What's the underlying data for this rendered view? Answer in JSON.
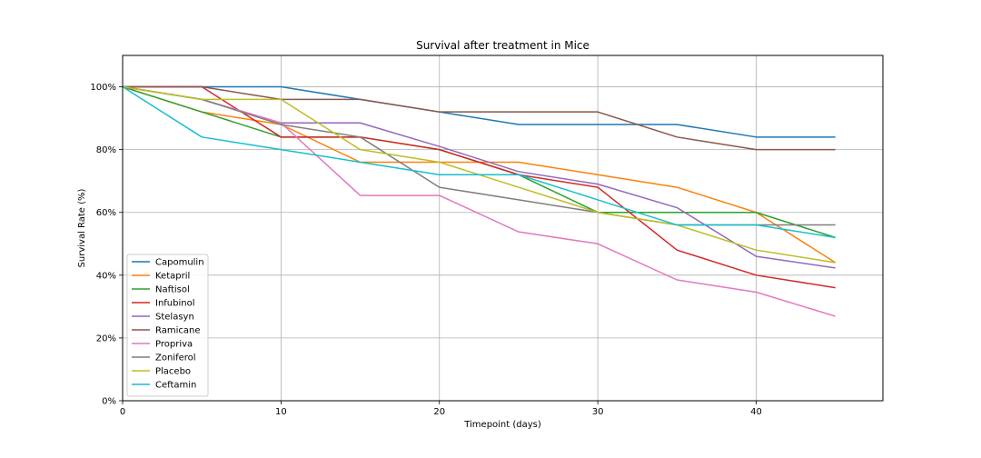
{
  "chart_data": {
    "type": "line",
    "title": "Survival after treatment in Mice",
    "xlabel": "Timepoint (days)",
    "ylabel": "Survival Rate (%)",
    "xlim": [
      0,
      48
    ],
    "ylim": [
      0,
      110
    ],
    "x_ticks": [
      0,
      10,
      20,
      30,
      40
    ],
    "y_ticks": [
      0,
      20,
      40,
      60,
      80,
      100
    ],
    "y_tick_labels": [
      "0%",
      "20%",
      "40%",
      "60%",
      "80%",
      "100%"
    ],
    "grid": true,
    "legend_position": "lower-left",
    "x": [
      0,
      5,
      10,
      15,
      20,
      25,
      30,
      35,
      40,
      45
    ],
    "series": [
      {
        "name": "Capomulin",
        "color": "#1f77b4",
        "values": [
          100,
          100,
          100,
          96,
          92,
          88,
          88,
          88,
          84,
          84
        ]
      },
      {
        "name": "Ketapril",
        "color": "#ff7f0e",
        "values": [
          100,
          92,
          88,
          76,
          76,
          76,
          72,
          68,
          60,
          44
        ]
      },
      {
        "name": "Naftisol",
        "color": "#2ca02c",
        "values": [
          100,
          92,
          84,
          84,
          80,
          72,
          60,
          60,
          60,
          52
        ]
      },
      {
        "name": "Infubinol",
        "color": "#d62728",
        "values": [
          100,
          100,
          84,
          84,
          80,
          72,
          68,
          48,
          40,
          36
        ]
      },
      {
        "name": "Stelasyn",
        "color": "#9467bd",
        "values": [
          100,
          96,
          88.5,
          88.5,
          81,
          73,
          69,
          61.5,
          46,
          42.3
        ]
      },
      {
        "name": "Ramicane",
        "color": "#8c564b",
        "values": [
          100,
          100,
          96,
          96,
          92,
          92,
          92,
          84,
          80,
          80
        ]
      },
      {
        "name": "Propriva",
        "color": "#e377c2",
        "values": [
          100,
          96,
          88.5,
          65.4,
          65.4,
          53.8,
          50,
          38.5,
          34.6,
          26.9
        ]
      },
      {
        "name": "Zoniferol",
        "color": "#7f7f7f",
        "values": [
          100,
          96,
          88,
          84,
          68,
          64,
          60,
          56,
          56,
          56
        ]
      },
      {
        "name": "Placebo",
        "color": "#bcbd22",
        "values": [
          100,
          96,
          96,
          80,
          76,
          68,
          60,
          56,
          48,
          44
        ]
      },
      {
        "name": "Ceftamin",
        "color": "#17becf",
        "values": [
          100,
          84,
          80,
          76,
          72,
          72,
          64,
          56,
          56,
          52
        ]
      }
    ]
  }
}
